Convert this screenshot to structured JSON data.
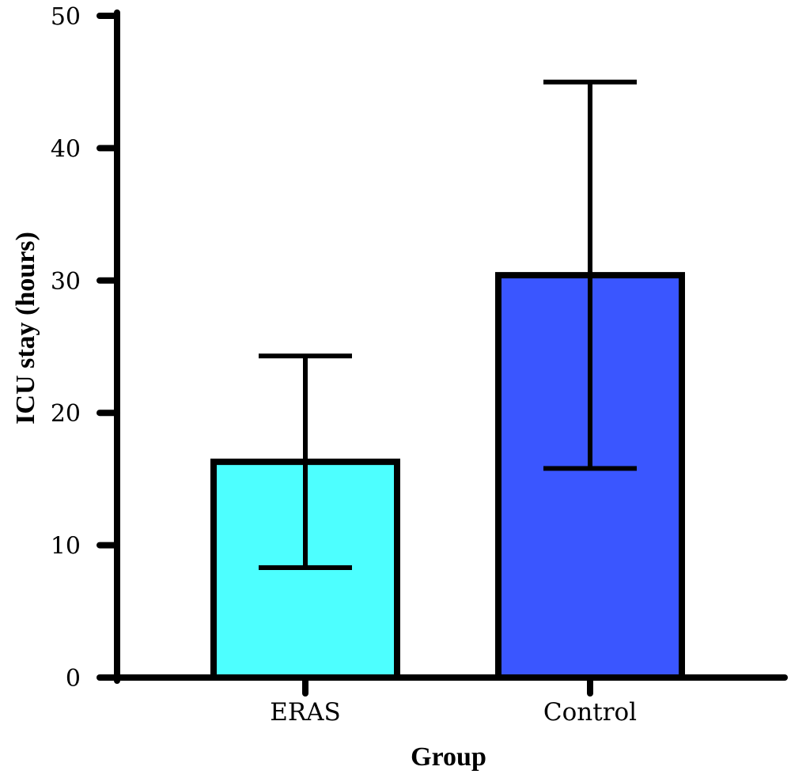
{
  "chart_data": {
    "type": "bar",
    "xlabel": "Group",
    "ylabel": "ICU stay (hours)",
    "categories": [
      "ERAS",
      "Control"
    ],
    "values": [
      16.3,
      30.4
    ],
    "error": [
      8.0,
      14.6
    ],
    "colors": [
      "#4dffff",
      "#3a56ff"
    ],
    "ylim": [
      0,
      50
    ],
    "yticks": [
      0,
      10,
      20,
      30,
      40,
      50
    ],
    "grid": false,
    "legend": "none"
  }
}
